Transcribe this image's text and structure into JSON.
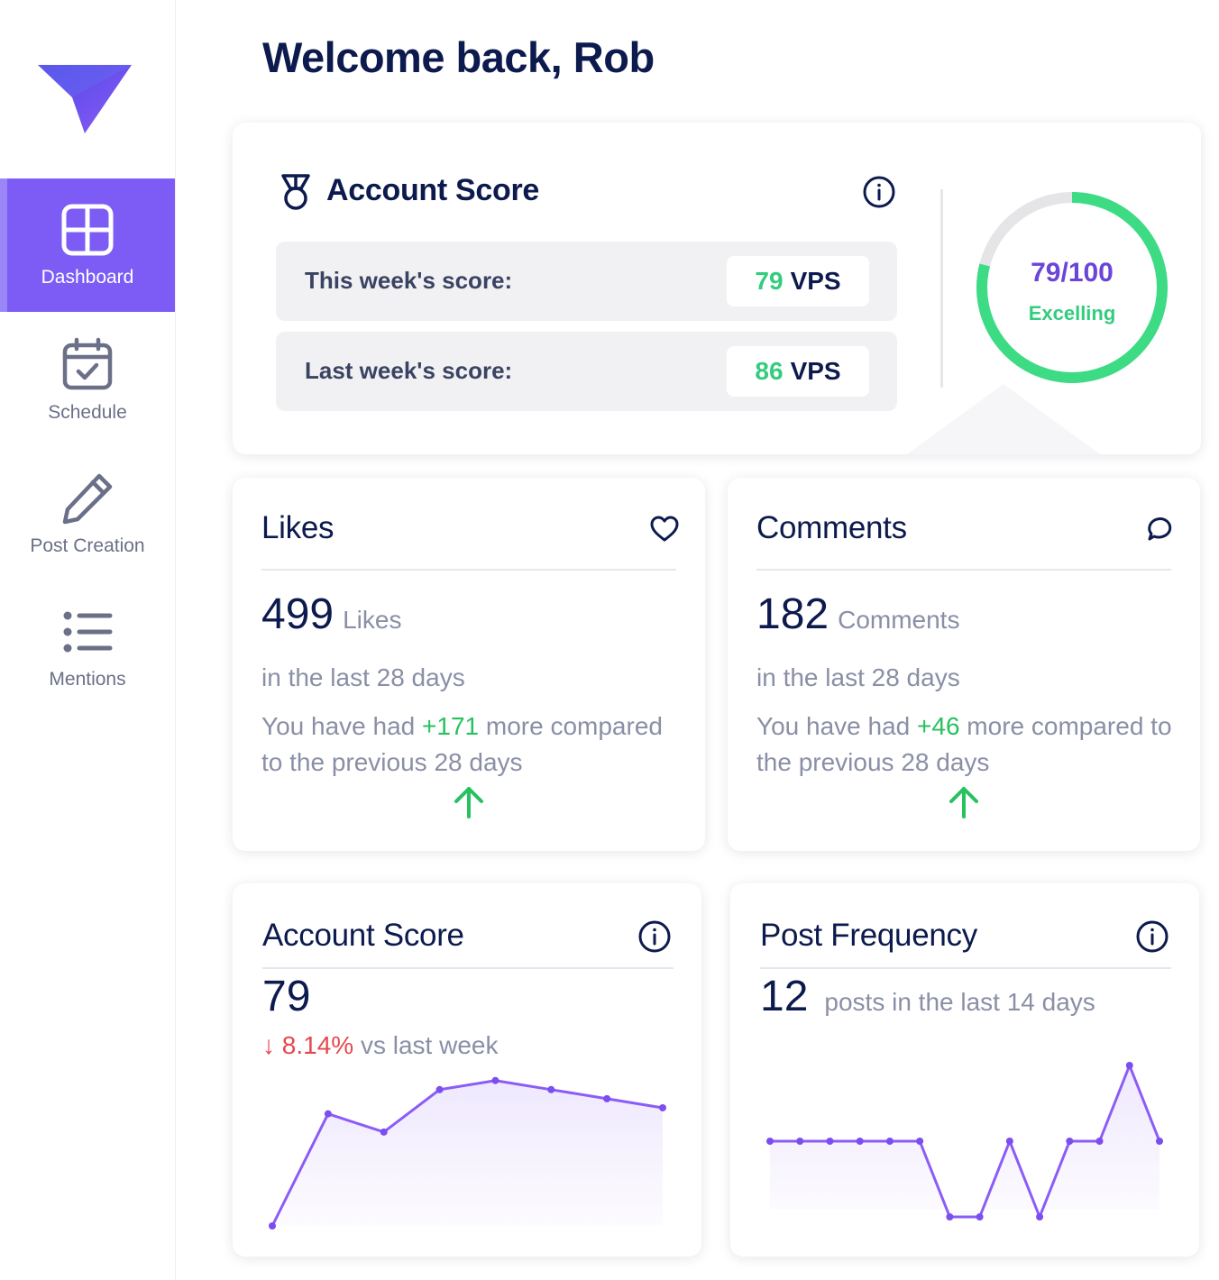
{
  "sidebar": {
    "logo": "paper-plane-logo",
    "items": [
      {
        "label": "Dashboard",
        "icon": "grid-icon",
        "active": true
      },
      {
        "label": "Schedule",
        "icon": "calendar-check-icon",
        "active": false
      },
      {
        "label": "Post Creation",
        "icon": "pencil-icon",
        "active": false
      },
      {
        "label": "Mentions",
        "icon": "list-icon",
        "active": false
      }
    ]
  },
  "header": {
    "welcome": "Welcome back, Rob"
  },
  "account_score": {
    "title": "Account Score",
    "this_week_label": "This week's score:",
    "this_week_value": "79",
    "this_week_unit": "VPS",
    "last_week_label": "Last week's score:",
    "last_week_value": "86",
    "last_week_unit": "VPS",
    "gauge_fraction": "79/100",
    "gauge_status": "Excelling",
    "gauge_value": 79,
    "gauge_max": 100
  },
  "likes": {
    "title": "Likes",
    "count": "499",
    "unit": "Likes",
    "period": "in the last 28 days",
    "compare_prefix": "You have had ",
    "compare_delta": "+171",
    "compare_suffix": " more compared to the previous 28 days"
  },
  "comments": {
    "title": "Comments",
    "count": "182",
    "unit": "Comments",
    "period": "in the last 28 days",
    "compare_prefix": "You have had ",
    "compare_delta": "+46",
    "compare_suffix": " more compared to the previous 28 days"
  },
  "score_chart": {
    "title": "Account Score",
    "value": "79",
    "delta_arrow": "↓",
    "delta_pct": "8.14%",
    "delta_suffix": " vs last week"
  },
  "frequency_chart": {
    "title": "Post Frequency",
    "value": "12",
    "caption": "posts in the last 14 days"
  },
  "colors": {
    "accent": "#7c5cf5",
    "green": "#34cc7e",
    "red": "#e5484d",
    "navy": "#0c1a4d",
    "line": "#8b5cf6"
  },
  "chart_data": [
    {
      "type": "area",
      "title": "Account Score",
      "series": [
        {
          "values": [
            40,
            77,
            71,
            85,
            88,
            85,
            82,
            79
          ]
        }
      ],
      "ylim": [
        40,
        90
      ]
    },
    {
      "type": "area",
      "title": "Post Frequency",
      "series": [
        {
          "values": [
            1,
            1,
            1,
            1,
            1,
            1,
            0,
            0,
            1,
            0,
            1,
            1,
            2,
            1
          ]
        }
      ],
      "ylim": [
        0,
        2
      ]
    }
  ]
}
